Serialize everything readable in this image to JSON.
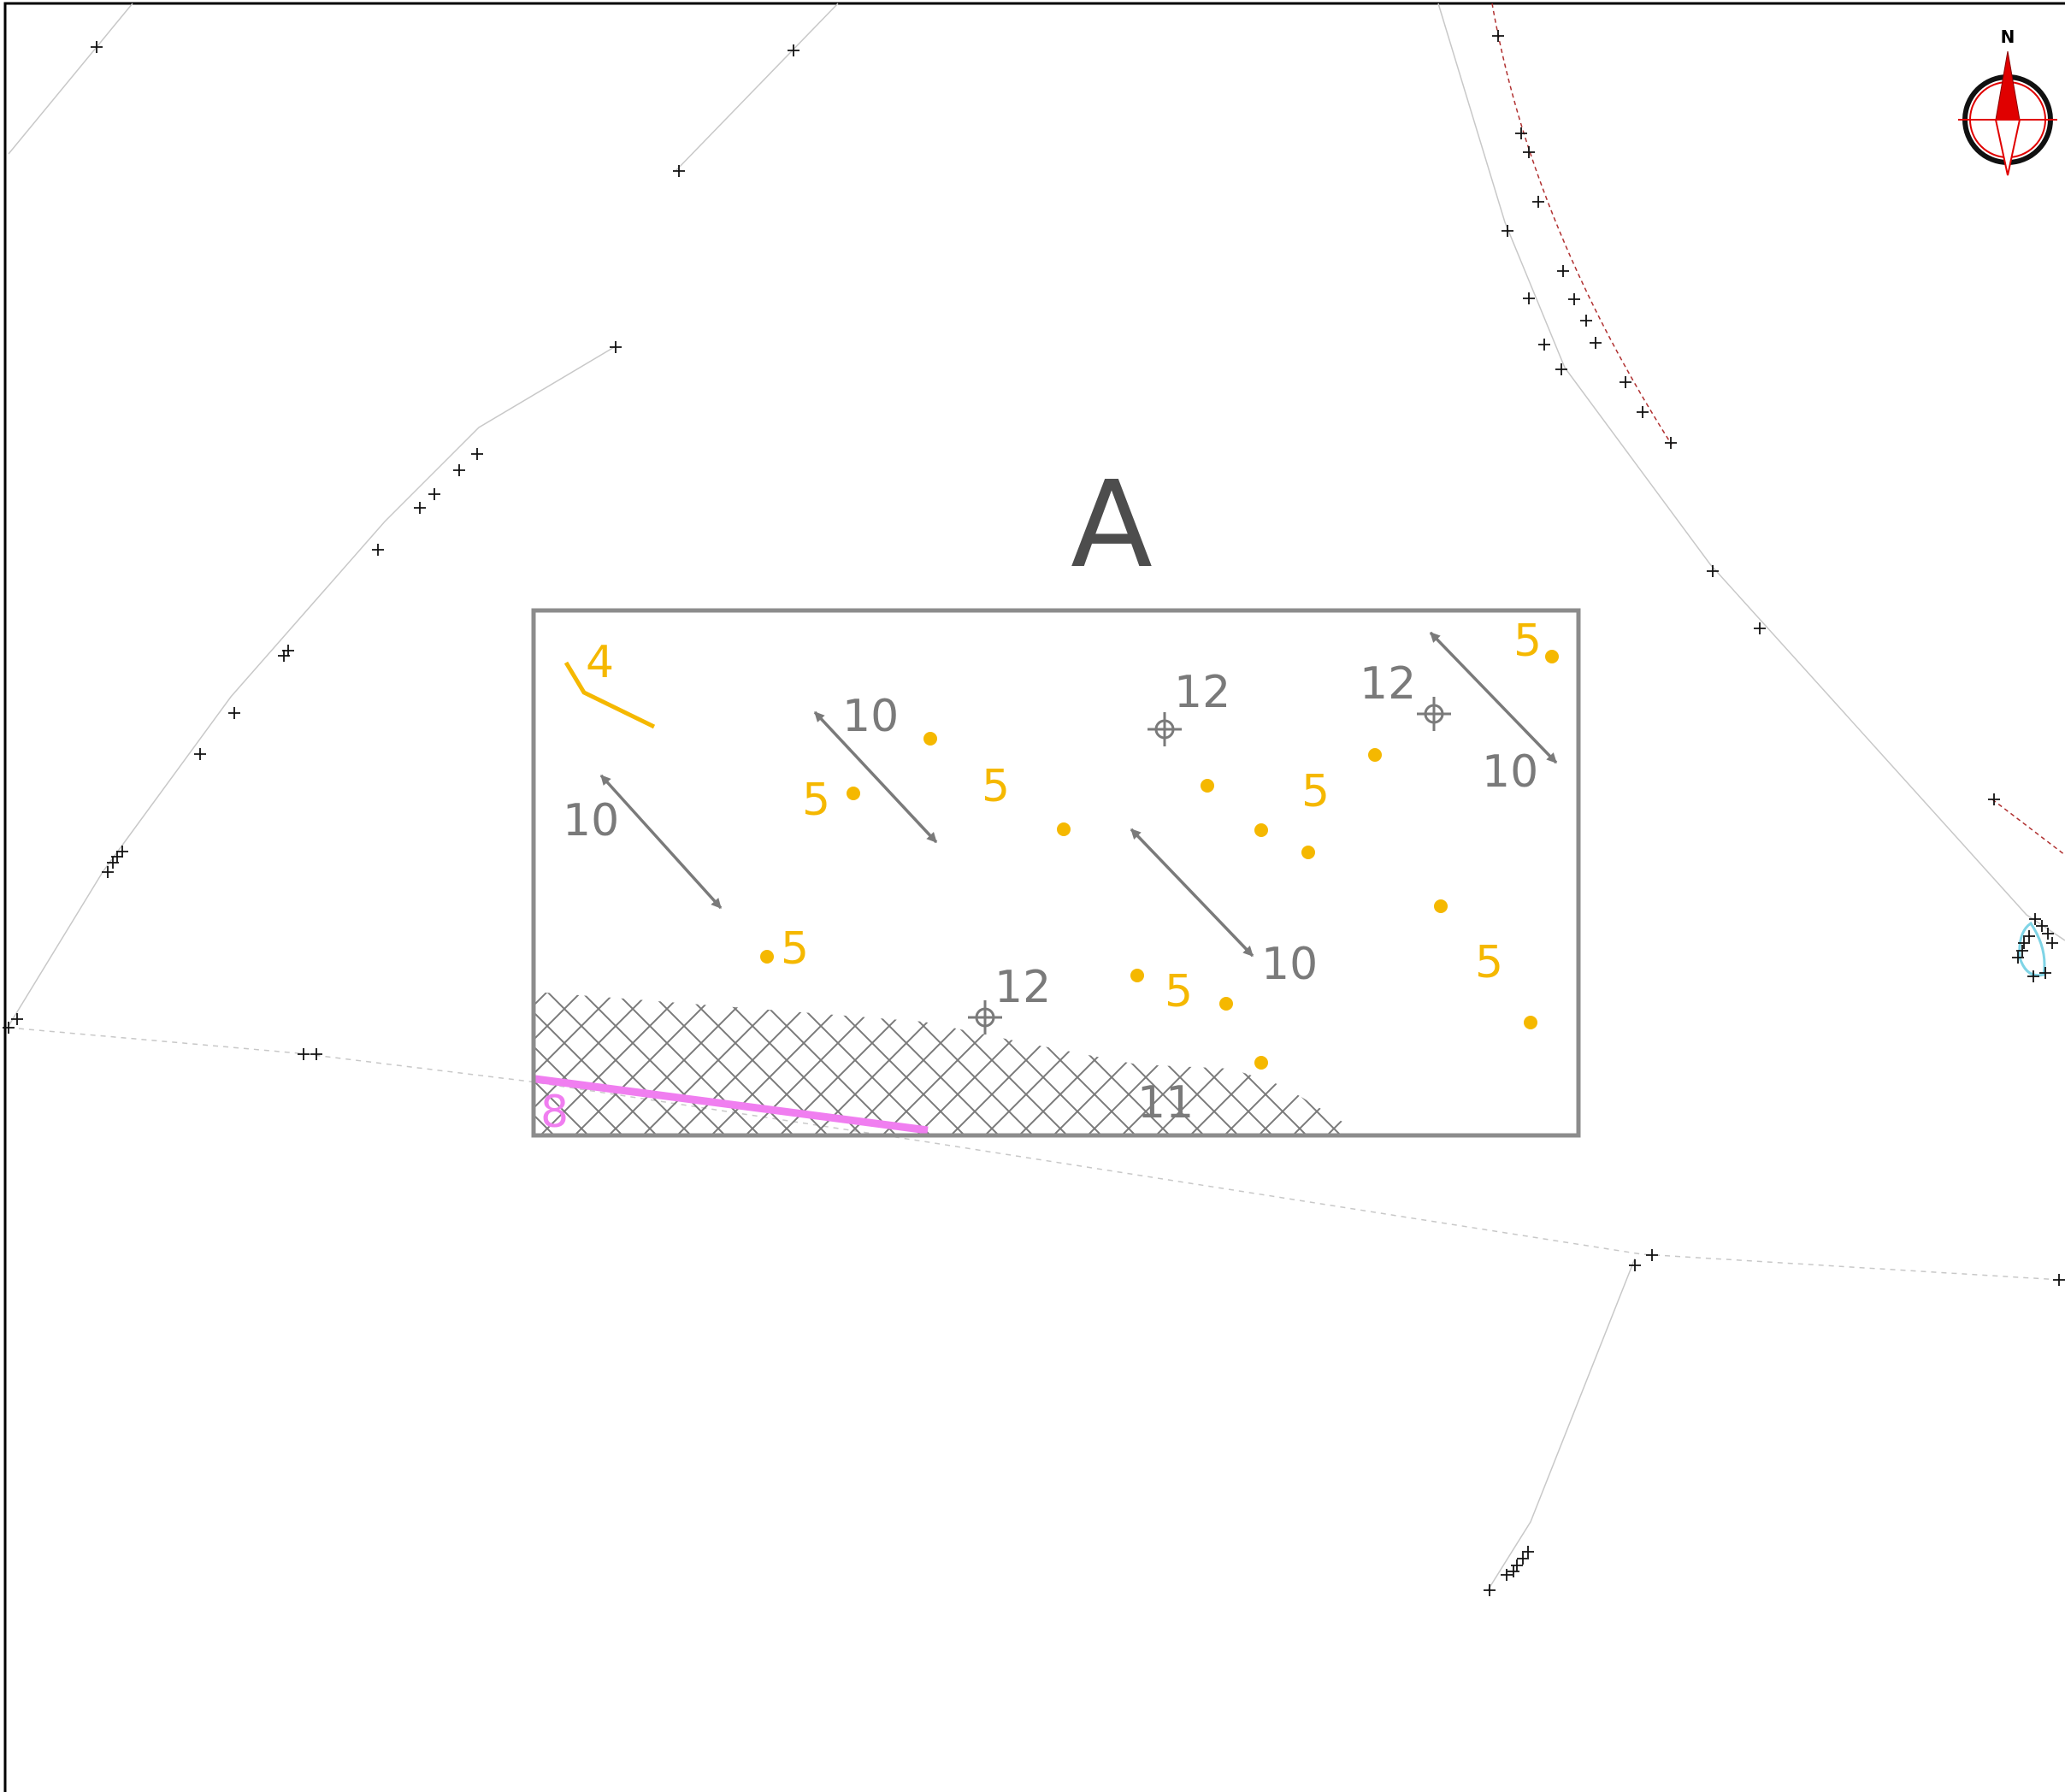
{
  "colors": {
    "frame": "#000000",
    "box": "#8c8c8c",
    "grey_symbol": "#7a7a7a",
    "orange": "#f5b800",
    "pink": "#f07ef0",
    "dashed_red": "#b03030",
    "thin_line": "#c8c8c8",
    "cross": "#111111",
    "north_red": "#e00000"
  },
  "title": "A",
  "compass": {
    "label": "N",
    "icon": "north-arrow-icon"
  },
  "labels": {
    "orange_line": "4",
    "orange_points": "5",
    "pink_line": "8",
    "arrows": "10",
    "hatched_area": "11",
    "crosshair_points": "12"
  }
}
